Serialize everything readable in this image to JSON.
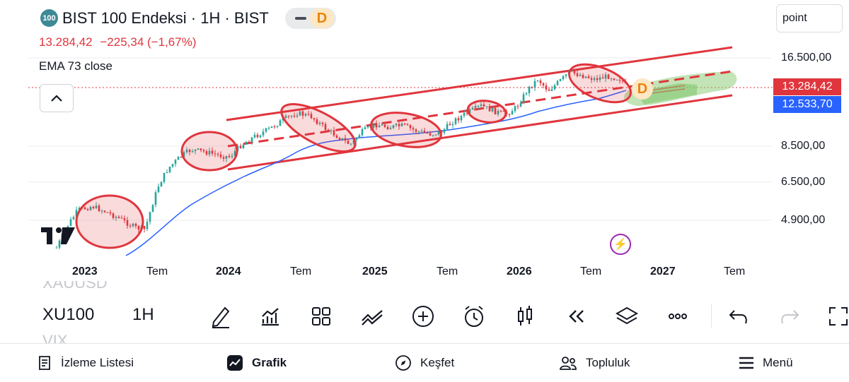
{
  "header": {
    "logo_badge": "100",
    "title": "BIST 100 Endeksi · 1H · BIST",
    "pill_letter": "D",
    "price": "13.284,42",
    "change": "−225,34 (−1,67%)",
    "indicator": "EMA 73 close",
    "mode_button": "point"
  },
  "price_axis": [
    "16.500,00",
    "8.500,00",
    "6.500,00",
    "4.900,00"
  ],
  "price_tags": {
    "last": "13.284,42",
    "ema": "12.533,70"
  },
  "time_axis": [
    {
      "label": "2023",
      "year": true
    },
    {
      "label": "Tem",
      "year": false
    },
    {
      "label": "2024",
      "year": true
    },
    {
      "label": "Tem",
      "year": false
    },
    {
      "label": "2025",
      "year": true
    },
    {
      "label": "Tem",
      "year": false
    },
    {
      "label": "2026",
      "year": true
    },
    {
      "label": "Tem",
      "year": false
    },
    {
      "label": "2027",
      "year": true
    },
    {
      "label": "Tem",
      "year": false
    }
  ],
  "chart_marker_letter": "D",
  "toolbar": {
    "symbol_prev": "XAUUSD",
    "symbol": "XU100",
    "interval": "1H",
    "symbol_next": "VIX",
    "tools": [
      "pen-icon",
      "indicators-icon",
      "templates-icon",
      "compare-icon",
      "add-icon",
      "alarm-icon",
      "candles-icon",
      "replay-icon",
      "layers-icon",
      "more-icon",
      "undo-icon",
      "redo-icon",
      "fullscreen-icon"
    ]
  },
  "bottom_nav": [
    {
      "label": "İzleme Listesi",
      "icon": "watchlist-icon"
    },
    {
      "label": "Grafik",
      "icon": "chart-icon"
    },
    {
      "label": "Keşfet",
      "icon": "compass-icon"
    },
    {
      "label": "Topluluk",
      "icon": "community-icon"
    },
    {
      "label": "Menü",
      "icon": "menu-icon"
    }
  ],
  "colors": {
    "down": "#e0353d",
    "up": "#26a69a",
    "ema": "#2962ff",
    "channel": "#e0353d",
    "projection": "#7dc46a"
  },
  "chart_data": {
    "type": "candlestick",
    "title": "BIST 100 Endeksi · 1H · BIST",
    "x_range": [
      "2023-01",
      "2026-12"
    ],
    "y_scale": "log",
    "last_close": 13284.42,
    "change": -225.34,
    "change_pct": -1.67,
    "ema_73": 12533.7,
    "series": [
      {
        "name": "EMA 73 close",
        "type": "line"
      }
    ]
  }
}
